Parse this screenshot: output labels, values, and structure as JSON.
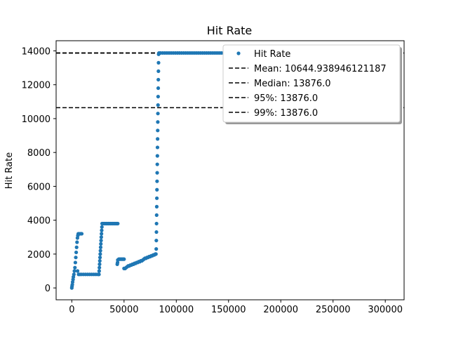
{
  "chart_data": {
    "type": "scatter",
    "title": "Hit Rate",
    "xlabel": "",
    "ylabel": "Hit Rate",
    "xlim": [
      -15000,
      318000
    ],
    "ylim": [
      -700,
      14600
    ],
    "xticks": [
      0,
      50000,
      100000,
      150000,
      200000,
      250000,
      300000
    ],
    "xtick_labels": [
      "0",
      "50000",
      "100000",
      "150000",
      "200000",
      "250000",
      "300000"
    ],
    "yticks": [
      0,
      2000,
      4000,
      6000,
      8000,
      10000,
      12000,
      14000
    ],
    "ytick_labels": [
      "0",
      "2000",
      "4000",
      "6000",
      "8000",
      "10000",
      "12000",
      "14000"
    ],
    "grid": false,
    "legend_location": "upper right",
    "series": [
      {
        "name": "Hit Rate",
        "marker": "o",
        "color": "#1f77b4",
        "points": [
          [
            0,
            0
          ],
          [
            200,
            100
          ],
          [
            500,
            200
          ],
          [
            800,
            350
          ],
          [
            1200,
            500
          ],
          [
            1500,
            650
          ],
          [
            2000,
            800
          ],
          [
            2500,
            1000
          ],
          [
            3000,
            1200
          ],
          [
            3400,
            1500
          ],
          [
            3800,
            1800
          ],
          [
            4200,
            2100
          ],
          [
            4600,
            2400
          ],
          [
            5000,
            2700
          ],
          [
            5400,
            2950
          ],
          [
            5800,
            3100
          ],
          [
            6200,
            3200
          ],
          [
            7000,
            3200
          ],
          [
            8000,
            3200
          ],
          [
            9000,
            3200
          ],
          [
            9500,
            3200
          ],
          [
            5500,
            1000
          ],
          [
            6500,
            800
          ],
          [
            7500,
            800
          ],
          [
            9000,
            800
          ],
          [
            11000,
            800
          ],
          [
            13000,
            800
          ],
          [
            15000,
            800
          ],
          [
            17000,
            800
          ],
          [
            19000,
            800
          ],
          [
            21000,
            800
          ],
          [
            23000,
            800
          ],
          [
            25000,
            800
          ],
          [
            26000,
            800
          ],
          [
            26200,
            1000
          ],
          [
            26400,
            1200
          ],
          [
            26600,
            1400
          ],
          [
            26800,
            1600
          ],
          [
            27000,
            1800
          ],
          [
            27200,
            2000
          ],
          [
            27400,
            2200
          ],
          [
            27600,
            2400
          ],
          [
            27800,
            2600
          ],
          [
            28000,
            2800
          ],
          [
            28200,
            3000
          ],
          [
            28400,
            3200
          ],
          [
            28600,
            3400
          ],
          [
            28800,
            3600
          ],
          [
            29000,
            3800
          ],
          [
            30000,
            3800
          ],
          [
            31000,
            3800
          ],
          [
            32000,
            3800
          ],
          [
            33000,
            3800
          ],
          [
            34000,
            3800
          ],
          [
            35000,
            3800
          ],
          [
            36000,
            3800
          ],
          [
            37000,
            3800
          ],
          [
            38000,
            3800
          ],
          [
            39000,
            3800
          ],
          [
            40000,
            3800
          ],
          [
            41000,
            3800
          ],
          [
            42000,
            3800
          ],
          [
            43000,
            3800
          ],
          [
            44000,
            3800
          ],
          [
            43500,
            1400
          ],
          [
            43800,
            1500
          ],
          [
            44000,
            1650
          ],
          [
            45000,
            1700
          ],
          [
            46000,
            1700
          ],
          [
            47000,
            1700
          ],
          [
            48000,
            1700
          ],
          [
            49000,
            1700
          ],
          [
            50000,
            1700
          ],
          [
            50000,
            1150
          ],
          [
            51000,
            1150
          ],
          [
            52000,
            1200
          ],
          [
            53000,
            1250
          ],
          [
            54000,
            1300
          ],
          [
            55000,
            1300
          ],
          [
            56000,
            1350
          ],
          [
            57000,
            1350
          ],
          [
            58000,
            1400
          ],
          [
            59000,
            1400
          ],
          [
            60000,
            1450
          ],
          [
            61000,
            1450
          ],
          [
            62000,
            1500
          ],
          [
            63000,
            1500
          ],
          [
            64000,
            1550
          ],
          [
            65000,
            1550
          ],
          [
            66000,
            1600
          ],
          [
            67000,
            1600
          ],
          [
            68000,
            1650
          ],
          [
            69000,
            1700
          ],
          [
            70000,
            1750
          ],
          [
            71000,
            1750
          ],
          [
            72000,
            1800
          ],
          [
            73000,
            1800
          ],
          [
            74000,
            1850
          ],
          [
            75000,
            1850
          ],
          [
            76000,
            1900
          ],
          [
            77000,
            1900
          ],
          [
            78000,
            1950
          ],
          [
            79000,
            1950
          ],
          [
            80000,
            2000
          ],
          [
            80500,
            2000
          ],
          [
            80800,
            2300
          ],
          [
            80900,
            2800
          ],
          [
            81000,
            3300
          ],
          [
            81100,
            3800
          ],
          [
            81200,
            4300
          ],
          [
            81300,
            4800
          ],
          [
            81400,
            5300
          ],
          [
            81500,
            5800
          ],
          [
            81600,
            6300
          ],
          [
            81700,
            6800
          ],
          [
            81800,
            7300
          ],
          [
            81900,
            7800
          ],
          [
            82000,
            8300
          ],
          [
            82100,
            8800
          ],
          [
            82200,
            9300
          ],
          [
            82300,
            9800
          ],
          [
            82400,
            10300
          ],
          [
            82500,
            10800
          ],
          [
            82600,
            11300
          ],
          [
            82700,
            11800
          ],
          [
            82800,
            12300
          ],
          [
            82900,
            12800
          ],
          [
            83000,
            13300
          ],
          [
            83100,
            13800
          ],
          [
            83500,
            13876
          ],
          [
            85000,
            13876
          ],
          [
            87000,
            13876
          ],
          [
            89000,
            13876
          ],
          [
            91000,
            13876
          ],
          [
            93000,
            13876
          ],
          [
            95000,
            13876
          ],
          [
            97000,
            13876
          ],
          [
            99000,
            13876
          ],
          [
            101000,
            13876
          ],
          [
            103000,
            13876
          ],
          [
            105000,
            13876
          ],
          [
            107000,
            13876
          ],
          [
            109000,
            13876
          ],
          [
            111000,
            13876
          ],
          [
            113000,
            13876
          ],
          [
            115000,
            13876
          ],
          [
            117000,
            13876
          ],
          [
            119000,
            13876
          ],
          [
            121000,
            13876
          ],
          [
            123000,
            13876
          ],
          [
            125000,
            13876
          ],
          [
            127000,
            13876
          ],
          [
            129000,
            13876
          ],
          [
            131000,
            13876
          ],
          [
            133000,
            13876
          ],
          [
            135000,
            13876
          ],
          [
            137000,
            13876
          ],
          [
            139000,
            13876
          ],
          [
            141000,
            13876
          ],
          [
            143000,
            13876
          ],
          [
            145000,
            13876
          ],
          [
            147000,
            13876
          ],
          [
            149000,
            13876
          ],
          [
            151000,
            13876
          ],
          [
            153000,
            13876
          ],
          [
            155000,
            13876
          ],
          [
            157000,
            13876
          ],
          [
            159000,
            13876
          ],
          [
            161000,
            13876
          ],
          [
            163000,
            13876
          ],
          [
            165000,
            13876
          ],
          [
            167000,
            13876
          ],
          [
            169000,
            13876
          ],
          [
            171000,
            13876
          ],
          [
            173000,
            13876
          ],
          [
            175000,
            13876
          ]
        ]
      }
    ],
    "reference_lines": [
      {
        "name": "Mean: 10644.938946121187",
        "value": 10644.938946121187,
        "style": "dashed",
        "color": "#000000"
      },
      {
        "name": "Median: 13876.0",
        "value": 13876.0,
        "style": "dashed",
        "color": "#000000"
      },
      {
        "name": "95%: 13876.0",
        "value": 13876.0,
        "style": "dashed",
        "color": "#000000"
      },
      {
        "name": "99%: 13876.0",
        "value": 13876.0,
        "style": "dashed",
        "color": "#000000"
      }
    ]
  }
}
